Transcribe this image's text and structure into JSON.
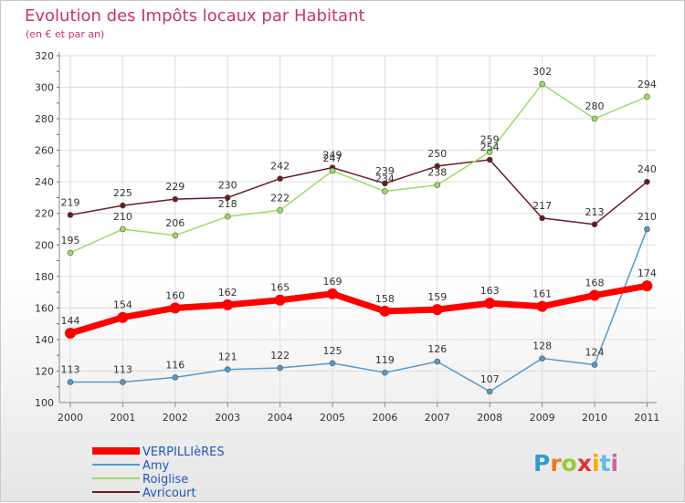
{
  "chart_data": {
    "type": "line",
    "title": "Evolution des Impôts locaux par Habitant",
    "subtitle": "(en € et par an)",
    "xlabel": "",
    "ylabel": "",
    "x": [
      "2000",
      "2001",
      "2002",
      "2003",
      "2004",
      "2005",
      "2006",
      "2007",
      "2008",
      "2009",
      "2010",
      "2011"
    ],
    "ylim": [
      100,
      320
    ],
    "yticks": [
      100,
      120,
      140,
      160,
      180,
      200,
      220,
      240,
      260,
      280,
      300,
      320
    ],
    "grid": true,
    "legend_position": "bottom-left",
    "series": [
      {
        "name": "Avricourt",
        "color": "#6b1a22",
        "values": [
          219,
          225,
          229,
          230,
          242,
          249,
          239,
          250,
          254,
          217,
          213,
          240
        ]
      },
      {
        "name": "Roiglise",
        "color": "#99dd66",
        "values": [
          195,
          210,
          206,
          218,
          222,
          247,
          234,
          238,
          259,
          302,
          280,
          294
        ]
      },
      {
        "name": "Amy",
        "color": "#5599cc",
        "values": [
          113,
          113,
          116,
          121,
          122,
          125,
          119,
          126,
          107,
          128,
          124,
          210
        ]
      },
      {
        "name": "VERPILLIèRES",
        "color": "#ff0000",
        "values": [
          144,
          154,
          160,
          162,
          165,
          169,
          158,
          159,
          163,
          161,
          168,
          174
        ]
      }
    ],
    "legend_order": [
      "VERPILLIèRES",
      "Amy",
      "Roiglise",
      "Avricourt"
    ]
  },
  "logo": {
    "letters": [
      "P",
      "r",
      "o",
      "x",
      "i",
      "t",
      "i"
    ],
    "colors": [
      "#3399cc",
      "#ee7722",
      "#99cc33",
      "#dd3333",
      "#ffaa00",
      "#66bbdd",
      "#cc6699"
    ]
  }
}
